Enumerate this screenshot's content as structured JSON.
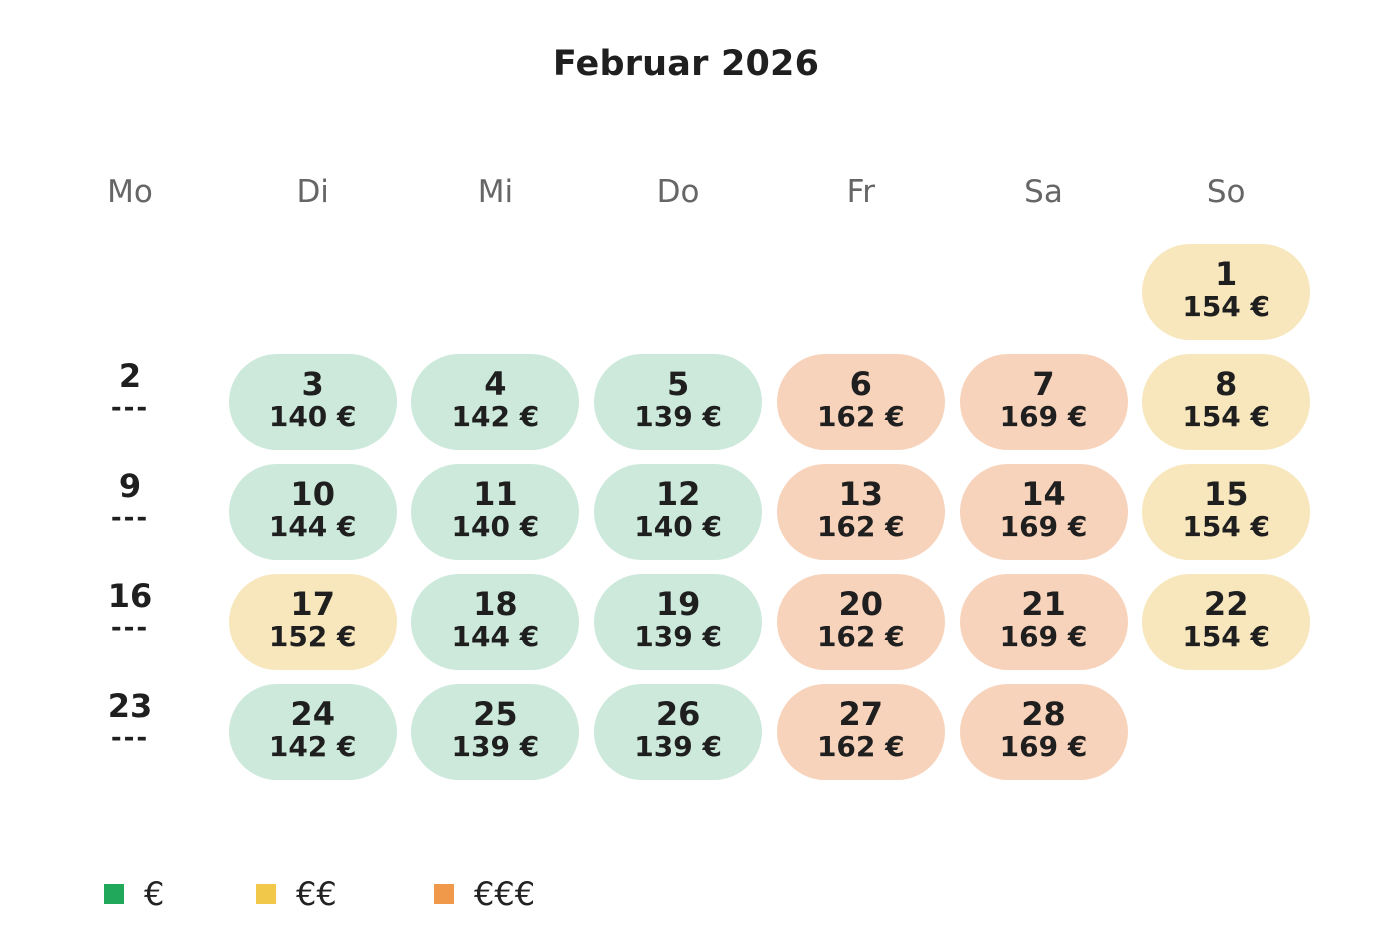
{
  "title": "Februar 2026",
  "weekdays": [
    "Mo",
    "Di",
    "Mi",
    "Do",
    "Fr",
    "Sa",
    "So"
  ],
  "colors": {
    "level_1": "#cce9dc",
    "level_2": "#f8e7bd",
    "level_3": "#f8d3bb",
    "legend_1": "#22a85b",
    "legend_2": "#f2c84a",
    "legend_3": "#f0994a"
  },
  "days": [
    {
      "day": "1",
      "price": "154 €",
      "weekday": "So",
      "level": 2
    },
    {
      "day": "2",
      "price": "---",
      "weekday": "Mo",
      "level": 0
    },
    {
      "day": "3",
      "price": "140 €",
      "weekday": "Di",
      "level": 1
    },
    {
      "day": "4",
      "price": "142 €",
      "weekday": "Mi",
      "level": 1
    },
    {
      "day": "5",
      "price": "139 €",
      "weekday": "Do",
      "level": 1
    },
    {
      "day": "6",
      "price": "162 €",
      "weekday": "Fr",
      "level": 3
    },
    {
      "day": "7",
      "price": "169 €",
      "weekday": "Sa",
      "level": 3
    },
    {
      "day": "8",
      "price": "154 €",
      "weekday": "So",
      "level": 2
    },
    {
      "day": "9",
      "price": "---",
      "weekday": "Mo",
      "level": 0
    },
    {
      "day": "10",
      "price": "144 €",
      "weekday": "Di",
      "level": 1
    },
    {
      "day": "11",
      "price": "140 €",
      "weekday": "Mi",
      "level": 1
    },
    {
      "day": "12",
      "price": "140 €",
      "weekday": "Do",
      "level": 1
    },
    {
      "day": "13",
      "price": "162 €",
      "weekday": "Fr",
      "level": 3
    },
    {
      "day": "14",
      "price": "169 €",
      "weekday": "Sa",
      "level": 3
    },
    {
      "day": "15",
      "price": "154 €",
      "weekday": "So",
      "level": 2
    },
    {
      "day": "16",
      "price": "---",
      "weekday": "Mo",
      "level": 0
    },
    {
      "day": "17",
      "price": "152 €",
      "weekday": "Di",
      "level": 2
    },
    {
      "day": "18",
      "price": "144 €",
      "weekday": "Mi",
      "level": 1
    },
    {
      "day": "19",
      "price": "139 €",
      "weekday": "Do",
      "level": 1
    },
    {
      "day": "20",
      "price": "162 €",
      "weekday": "Fr",
      "level": 3
    },
    {
      "day": "21",
      "price": "169 €",
      "weekday": "Sa",
      "level": 3
    },
    {
      "day": "22",
      "price": "154 €",
      "weekday": "So",
      "level": 2
    },
    {
      "day": "23",
      "price": "---",
      "weekday": "Mo",
      "level": 0
    },
    {
      "day": "24",
      "price": "142 €",
      "weekday": "Di",
      "level": 1
    },
    {
      "day": "25",
      "price": "139 €",
      "weekday": "Mi",
      "level": 1
    },
    {
      "day": "26",
      "price": "139 €",
      "weekday": "Do",
      "level": 1
    },
    {
      "day": "27",
      "price": "162 €",
      "weekday": "Fr",
      "level": 3
    },
    {
      "day": "28",
      "price": "169 €",
      "weekday": "Sa",
      "level": 3
    }
  ],
  "legend": [
    {
      "label": "€",
      "color": "#22a85b"
    },
    {
      "label": "€€",
      "color": "#f2c84a"
    },
    {
      "label": "€€€",
      "color": "#f0994a"
    }
  ]
}
